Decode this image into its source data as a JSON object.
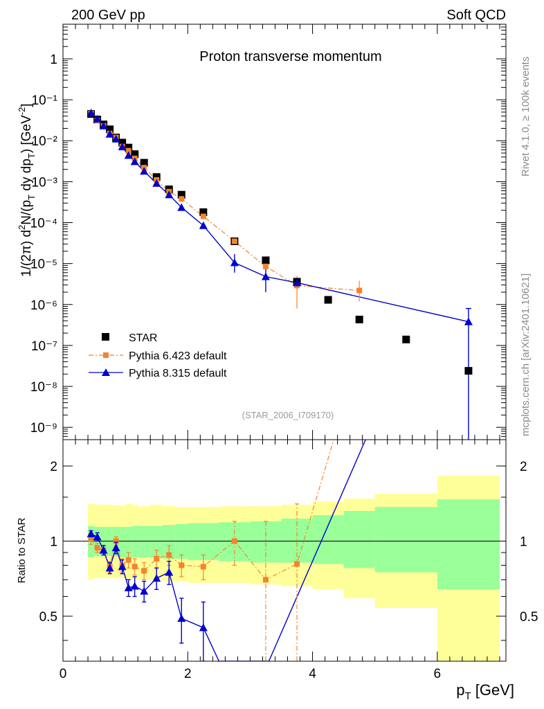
{
  "header": {
    "left": "200 GeV pp",
    "right": "Soft QCD",
    "side_top": "Rivet 4.1.0, ≥ 100k events",
    "side_bottom": "mcplots.cern.ch [arXiv:2401.10621]"
  },
  "chart_data": [
    {
      "type": "scatter",
      "title": "Proton transverse momentum",
      "xlabel": "p_T [GeV]",
      "ylabel": "1/(2π)  d²N/(p_T dy dp_T) [GeV⁻²]",
      "yscale": "log",
      "xlim": [
        0,
        7.1
      ],
      "ylim": [
        5e-10,
        7
      ],
      "ytick_labels": [
        "10⁻⁹",
        "10⁻⁸",
        "10⁻⁷",
        "10⁻⁶",
        "10⁻⁵",
        "10⁻⁴",
        "10⁻³",
        "10⁻²",
        "10⁻¹",
        "1"
      ],
      "watermark": "(STAR_2006_I709170)",
      "legend_position": "lower-left",
      "series": [
        {
          "name": "STAR",
          "style": "markers",
          "color": "#000000",
          "marker": "square",
          "x": [
            0.45,
            0.55,
            0.65,
            0.75,
            0.85,
            0.95,
            1.05,
            1.15,
            1.3,
            1.5,
            1.7,
            1.9,
            2.25,
            2.75,
            3.25,
            3.75,
            4.25,
            4.75,
            5.5,
            6.5
          ],
          "y": [
            0.045,
            0.033,
            0.025,
            0.019,
            0.012,
            0.009,
            0.0068,
            0.0047,
            0.0029,
            0.0013,
            0.00065,
            0.00048,
            0.00018,
            3.5e-05,
            1.2e-05,
            3.6e-06,
            1.3e-06,
            4.3e-07,
            1.4e-07,
            2.4e-08
          ]
        },
        {
          "name": "Pythia 6.423 default",
          "style": "dashdot-markers",
          "color": "#f5832d",
          "marker": "square-small",
          "x": [
            0.45,
            0.55,
            0.65,
            0.75,
            0.85,
            0.95,
            1.05,
            1.15,
            1.3,
            1.5,
            1.7,
            1.9,
            2.25,
            2.75,
            3.25,
            3.75,
            4.75
          ],
          "y": [
            0.046,
            0.031,
            0.023,
            0.015,
            0.012,
            0.0072,
            0.0057,
            0.0037,
            0.0022,
            0.0011,
            0.00057,
            0.00038,
            0.000142,
            3.5e-05,
            8.5e-06,
            2.9e-06,
            2.2e-06
          ]
        },
        {
          "name": "Pythia 8.315 default",
          "style": "solid-markers",
          "color": "#0000cc",
          "marker": "triangle",
          "x": [
            0.45,
            0.55,
            0.65,
            0.75,
            0.85,
            0.95,
            1.05,
            1.15,
            1.3,
            1.5,
            1.7,
            1.9,
            2.25,
            2.75,
            3.25,
            3.75,
            6.5
          ],
          "y": [
            0.048,
            0.034,
            0.023,
            0.0145,
            0.011,
            0.0071,
            0.0044,
            0.0031,
            0.0018,
            0.00091,
            0.00048,
            0.000235,
            8.5e-05,
            1.05e-05,
            4.8e-06,
            3.4e-06,
            3.8e-07
          ]
        }
      ]
    },
    {
      "type": "line",
      "ylabel": "Ratio to STAR",
      "xlabel": "p_T [GeV]",
      "xlim": [
        0,
        7.1
      ],
      "ylim": [
        0.33,
        2.55
      ],
      "xtick_labels": [
        "0",
        "2",
        "4",
        "6"
      ],
      "ytick_labels": [
        "0.5",
        "1",
        "2"
      ],
      "reference_line": 1,
      "bands": {
        "bin_edges": [
          0.4,
          0.5,
          0.6,
          0.7,
          0.8,
          0.9,
          1.0,
          1.1,
          1.2,
          1.4,
          1.6,
          1.8,
          2.0,
          2.5,
          3.0,
          3.5,
          4.0,
          4.5,
          5.0,
          6.0,
          7.0
        ],
        "green_lo": [
          0.86,
          0.87,
          0.87,
          0.87,
          0.87,
          0.86,
          0.86,
          0.86,
          0.86,
          0.86,
          0.85,
          0.85,
          0.84,
          0.83,
          0.82,
          0.82,
          0.81,
          0.78,
          0.75,
          0.64
        ],
        "green_hi": [
          1.15,
          1.14,
          1.14,
          1.14,
          1.14,
          1.14,
          1.14,
          1.15,
          1.15,
          1.15,
          1.16,
          1.17,
          1.18,
          1.19,
          1.2,
          1.23,
          1.27,
          1.32,
          1.37,
          1.47
        ],
        "yellow_lo": [
          0.7,
          0.71,
          0.71,
          0.71,
          0.71,
          0.71,
          0.7,
          0.7,
          0.7,
          0.7,
          0.69,
          0.69,
          0.68,
          0.68,
          0.67,
          0.66,
          0.64,
          0.59,
          0.54,
          0.33
        ],
        "yellow_hi": [
          1.41,
          1.4,
          1.4,
          1.4,
          1.39,
          1.39,
          1.41,
          1.4,
          1.38,
          1.4,
          1.38,
          1.37,
          1.37,
          1.38,
          1.38,
          1.4,
          1.44,
          1.48,
          1.55,
          1.83
        ]
      },
      "series": [
        {
          "name": "Pythia 6.423 default",
          "color": "#f5832d",
          "x": [
            0.45,
            0.55,
            0.65,
            0.75,
            0.85,
            0.95,
            1.05,
            1.15,
            1.3,
            1.5,
            1.7,
            1.9,
            2.25,
            2.75,
            3.25,
            3.75,
            4.35
          ],
          "y": [
            1.02,
            0.94,
            0.92,
            0.79,
            1.0,
            0.8,
            0.84,
            0.79,
            0.76,
            0.85,
            0.88,
            0.8,
            0.79,
            1.0,
            0.7,
            0.81,
            2.6
          ],
          "err": [
            0.05,
            0.04,
            0.04,
            0.04,
            0.04,
            0.05,
            0.06,
            0.06,
            0.06,
            0.07,
            0.08,
            0.08,
            0.09,
            0.2,
            0.5,
            0.6,
            0.0
          ]
        },
        {
          "name": "Pythia 8.315 default",
          "color": "#0000cc",
          "x": [
            0.45,
            0.55,
            0.65,
            0.75,
            0.85,
            0.95,
            1.05,
            1.15,
            1.3,
            1.5,
            1.7,
            1.9,
            2.25,
            2.5,
            3.3,
            4.85
          ],
          "y": [
            1.07,
            1.04,
            0.92,
            0.78,
            0.94,
            0.79,
            0.65,
            0.66,
            0.63,
            0.71,
            0.75,
            0.49,
            0.45,
            0.33,
            0.33,
            2.55
          ],
          "err": [
            0.03,
            0.04,
            0.04,
            0.04,
            0.05,
            0.05,
            0.05,
            0.06,
            0.06,
            0.07,
            0.08,
            0.1,
            0.12,
            0.0,
            0.0,
            0.0
          ]
        }
      ]
    }
  ]
}
